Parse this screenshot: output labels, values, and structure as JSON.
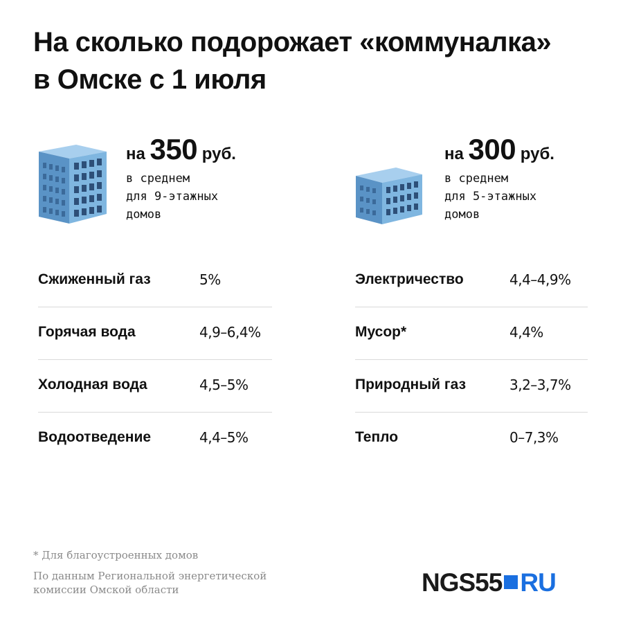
{
  "title": {
    "line1": "На сколько подорожает «коммуналка»",
    "line2": "в Омске с 1 июля"
  },
  "stats": [
    {
      "prefix": "на",
      "amount": "350",
      "unit": "руб.",
      "desc": [
        "в среднем",
        "для 9-этажных",
        "домов"
      ]
    },
    {
      "prefix": "на",
      "amount": "300",
      "unit": "руб.",
      "desc": [
        "в среднем",
        "для 5-этажных",
        "домов"
      ]
    }
  ],
  "left_table": [
    {
      "label": "Сжиженный газ",
      "value": "5%"
    },
    {
      "label": "Горячая вода",
      "value": "4,9–6,4%"
    },
    {
      "label": "Холодная вода",
      "value": "4,5–5%"
    },
    {
      "label": "Водоотведение",
      "value": "4,4–5%"
    }
  ],
  "right_table": [
    {
      "label": "Электричество",
      "value": "4,4–4,9%"
    },
    {
      "label": "Мусор*",
      "value": "4,4%"
    },
    {
      "label": "Природный газ",
      "value": "3,2–3,7%"
    },
    {
      "label": "Тепло",
      "value": "0–7,3%"
    }
  ],
  "footnote": "* Для благоустроенных домов",
  "source": {
    "line1": "По данным Региональной энергетической",
    "line2": "комиссии Омской области"
  },
  "logo": {
    "left": "NGS55",
    "right": "RU"
  },
  "colors": {
    "accent": "#1a6fe0",
    "building_front": "#7fb6e0",
    "building_side": "#5a93c6",
    "building_top": "#a8cfee",
    "window": "#2d4f78",
    "divider": "#d9d9d9",
    "muted_text": "#8a8a8a"
  }
}
